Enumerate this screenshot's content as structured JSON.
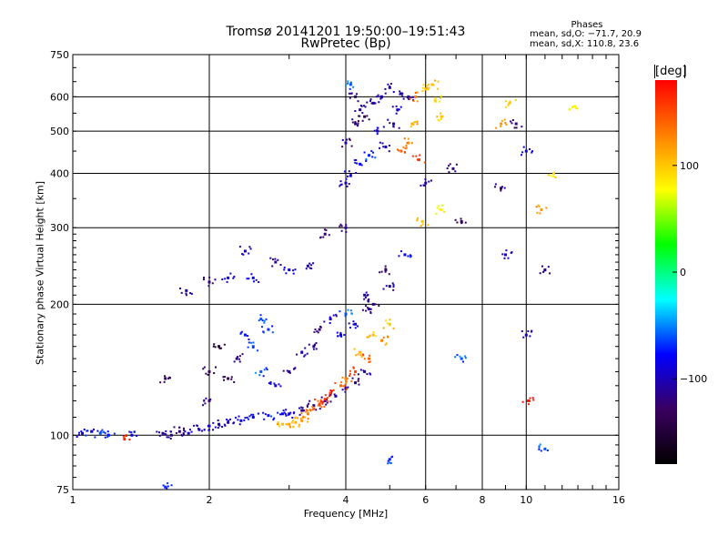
{
  "chart_data": {
    "type": "scatter",
    "title": "Tromsø 20141201 19:50:00–19:51:43",
    "subtitle": "RwPretec (Bp)",
    "xlabel": "Frequency [MHz]",
    "ylabel": "Stationary phase Virtual Height [km]",
    "x_scale": "log",
    "y_scale": "log",
    "xlim": [
      1,
      16
    ],
    "ylim": [
      75,
      750
    ],
    "x_ticks": [
      1,
      2,
      4,
      6,
      8,
      10,
      16
    ],
    "x_tick_labels": [
      "1",
      "2",
      "4",
      "6",
      "8",
      "10",
      "16"
    ],
    "y_ticks": [
      75,
      100,
      200,
      300,
      400,
      500,
      600,
      750
    ],
    "y_tick_labels": [
      "75",
      "100",
      "200",
      "300",
      "400",
      "500",
      "600",
      "750"
    ],
    "grid": true,
    "legend": {
      "title": "Phases",
      "lines": [
        "mean, sd,O: −71.7, 20.9",
        "mean, sd,X: 110.8, 23.6"
      ],
      "position": "top-right"
    },
    "colorbar": {
      "unit": "[deg]",
      "ticks": [
        100,
        0,
        -100
      ],
      "tick_labels": [
        "100",
        "0",
        "−100"
      ],
      "range": [
        -180,
        180
      ],
      "colors": [
        "#000000",
        "#3a0060",
        "#0000ff",
        "#00ffff",
        "#00ff00",
        "#ffff00",
        "#ff8000",
        "#ff0000"
      ]
    },
    "series": [
      {
        "points": [
          [
            1.05,
            101,
            -90
          ],
          [
            1.1,
            102,
            -80
          ],
          [
            1.15,
            101,
            -60
          ],
          [
            1.2,
            100,
            -70
          ],
          [
            1.58,
            101,
            -110
          ],
          [
            1.65,
            100,
            -115
          ],
          [
            1.72,
            102,
            -120
          ],
          [
            1.8,
            101,
            -105
          ],
          [
            1.9,
            103,
            -100
          ],
          [
            2.0,
            105,
            -100
          ],
          [
            2.1,
            106,
            -95
          ],
          [
            2.2,
            107,
            -90
          ],
          [
            2.35,
            108,
            -85
          ],
          [
            2.5,
            110,
            -80
          ],
          [
            2.7,
            111,
            -75
          ],
          [
            2.9,
            112,
            -80
          ],
          [
            3.0,
            112,
            -90
          ],
          [
            3.2,
            114,
            -110
          ],
          [
            3.4,
            117,
            -110
          ],
          [
            3.6,
            120,
            -100
          ],
          [
            3.8,
            123,
            -105
          ],
          [
            4.0,
            128,
            -110
          ],
          [
            4.2,
            132,
            -115
          ],
          [
            4.4,
            140,
            -110
          ],
          [
            2.0,
            120,
            -120
          ],
          [
            2.0,
            140,
            -130
          ],
          [
            2.1,
            160,
            -150
          ],
          [
            2.2,
            135,
            -140
          ],
          [
            2.3,
            150,
            -120
          ],
          [
            2.4,
            170,
            -70
          ],
          [
            2.5,
            160,
            -60
          ],
          [
            2.6,
            185,
            -60
          ],
          [
            2.6,
            140,
            -60
          ],
          [
            2.7,
            175,
            -70
          ],
          [
            2.8,
            130,
            -90
          ],
          [
            3.0,
            140,
            -110
          ],
          [
            3.2,
            155,
            -100
          ],
          [
            3.4,
            160,
            -110
          ],
          [
            3.5,
            175,
            -120
          ],
          [
            3.7,
            185,
            -100
          ],
          [
            3.9,
            170,
            -80
          ],
          [
            4.0,
            190,
            -60
          ],
          [
            4.2,
            180,
            -90
          ],
          [
            4.5,
            195,
            -110
          ],
          [
            1.6,
            135,
            -140
          ],
          [
            1.78,
            215,
            -110
          ],
          [
            2.0,
            225,
            -120
          ],
          [
            2.2,
            230,
            -90
          ],
          [
            2.4,
            265,
            -100
          ],
          [
            2.5,
            230,
            -80
          ],
          [
            2.8,
            250,
            -110
          ],
          [
            3.0,
            240,
            -90
          ],
          [
            3.3,
            245,
            -100
          ],
          [
            3.6,
            290,
            -120
          ],
          [
            4.0,
            300,
            -110
          ],
          [
            4.4,
            210,
            -110
          ],
          [
            4.6,
            200,
            -120
          ],
          [
            4.9,
            240,
            -130
          ],
          [
            5.0,
            220,
            -110
          ],
          [
            5.4,
            260,
            -80
          ],
          [
            4.0,
            380,
            -100
          ],
          [
            4.1,
            395,
            -90
          ],
          [
            4.3,
            420,
            -80
          ],
          [
            4.5,
            440,
            -70
          ],
          [
            4.0,
            470,
            -110
          ],
          [
            4.2,
            520,
            -120
          ],
          [
            4.4,
            540,
            -130
          ],
          [
            4.6,
            580,
            -110
          ],
          [
            4.8,
            600,
            -100
          ],
          [
            5.0,
            630,
            -110
          ],
          [
            5.2,
            560,
            -90
          ],
          [
            5.3,
            610,
            -100
          ],
          [
            4.1,
            640,
            -60
          ],
          [
            4.2,
            600,
            -120
          ],
          [
            4.3,
            560,
            -110
          ],
          [
            4.7,
            500,
            -90
          ],
          [
            4.9,
            460,
            -100
          ],
          [
            5.1,
            520,
            -110
          ],
          [
            5.5,
            600,
            -110
          ],
          [
            6.9,
            410,
            -120
          ],
          [
            6.0,
            380,
            -110
          ],
          [
            7.2,
            310,
            -130
          ],
          [
            8.8,
            370,
            -120
          ],
          [
            9.0,
            260,
            -100
          ],
          [
            11.0,
            240,
            -120
          ],
          [
            9.5,
            520,
            -120
          ],
          [
            10.0,
            450,
            -90
          ],
          [
            7.2,
            150,
            -60
          ],
          [
            10.0,
            170,
            -100
          ],
          [
            5.0,
            88,
            -70
          ],
          [
            11.0,
            93,
            -60
          ],
          [
            1.6,
            76,
            -70
          ],
          [
            1.35,
            100,
            -80
          ]
        ]
      },
      {
        "points": [
          [
            2.9,
            106,
            110
          ],
          [
            3.0,
            106,
            115
          ],
          [
            3.1,
            107,
            110
          ],
          [
            3.2,
            108,
            120
          ],
          [
            3.3,
            112,
            130
          ],
          [
            3.4,
            115,
            140
          ],
          [
            3.5,
            118,
            150
          ],
          [
            3.6,
            121,
            160
          ],
          [
            3.7,
            125,
            170
          ],
          [
            3.9,
            130,
            140
          ],
          [
            4.0,
            135,
            130
          ],
          [
            4.2,
            140,
            150
          ],
          [
            4.5,
            150,
            140
          ],
          [
            4.8,
            165,
            120
          ],
          [
            5.0,
            180,
            100
          ],
          [
            4.3,
            155,
            110
          ],
          [
            4.6,
            170,
            105
          ],
          [
            5.3,
            450,
            140
          ],
          [
            5.5,
            470,
            120
          ],
          [
            5.6,
            520,
            110
          ],
          [
            5.7,
            600,
            130
          ],
          [
            6.0,
            625,
            100
          ],
          [
            6.3,
            590,
            90
          ],
          [
            6.5,
            540,
            100
          ],
          [
            6.2,
            640,
            100
          ],
          [
            5.8,
            430,
            150
          ],
          [
            6.5,
            330,
            80
          ],
          [
            5.9,
            310,
            100
          ],
          [
            8.8,
            520,
            120
          ],
          [
            9.2,
            580,
            90
          ],
          [
            10.8,
            330,
            120
          ],
          [
            11.5,
            400,
            90
          ],
          [
            10.1,
            120,
            170
          ],
          [
            1.3,
            98,
            160
          ],
          [
            12.8,
            570,
            80
          ]
        ]
      }
    ]
  }
}
